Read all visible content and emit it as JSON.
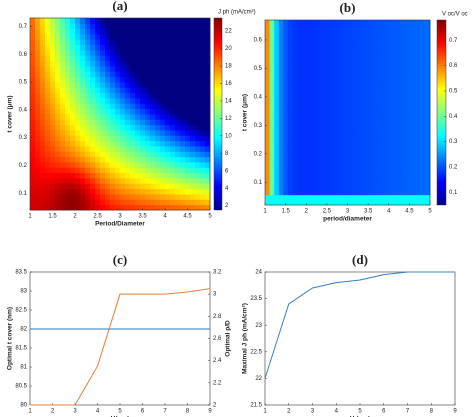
{
  "chart_data": [
    {
      "type": "heatmap",
      "title": "(a)",
      "x_label": "Period/Diameter",
      "y_label": "t cover (μm)",
      "colorbar_label": "J ph (mA/cm²)",
      "xlim": [
        1,
        5
      ],
      "xticks": [
        1,
        1.5,
        2,
        2.5,
        3,
        3.5,
        4,
        4.5,
        5
      ],
      "ylim": [
        0.04,
        0.73
      ],
      "yticks": [
        0.1,
        0.2,
        0.3,
        0.4,
        0.5,
        0.6,
        0.7
      ],
      "clim": [
        1.5,
        23.5
      ],
      "cticks": [
        2,
        4,
        6,
        8,
        10,
        12,
        14,
        16,
        18,
        20,
        22
      ],
      "colormap": "jet"
    },
    {
      "type": "heatmap",
      "title": "(b)",
      "x_label": "period/diameter",
      "y_label": "t cover (μm)",
      "colorbar_label": "V oc/V oc",
      "xlim": [
        1,
        5
      ],
      "xticks": [
        1,
        1.5,
        2,
        2.5,
        3,
        3.5,
        4,
        4.5,
        5
      ],
      "ylim": [
        0.02,
        0.67
      ],
      "yticks": [
        0.1,
        0.2,
        0.3,
        0.4,
        0.5,
        0.6
      ],
      "clim": [
        0.05,
        0.78
      ],
      "cticks": [
        0.1,
        0.2,
        0.3,
        0.4,
        0.5,
        0.6,
        0.7
      ],
      "colormap": "jet"
    },
    {
      "type": "line",
      "title": "(c)",
      "x_label": "H(μm)",
      "y_label": "Optimal t cover (nm)",
      "y2_label": "Optimal p/D",
      "x": [
        1,
        2,
        3,
        4,
        5,
        6,
        7,
        8,
        9
      ],
      "xlim": [
        1,
        9
      ],
      "xticks": [
        1,
        2,
        3,
        4,
        5,
        6,
        7,
        8,
        9
      ],
      "ylim": [
        80,
        83.5
      ],
      "yticks": [
        80,
        80.5,
        81,
        81.5,
        82,
        82.5,
        83,
        83.5
      ],
      "y2lim": [
        2,
        3.2
      ],
      "y2ticks": [
        2,
        2.2,
        2.4,
        2.6,
        2.8,
        3,
        3.2
      ],
      "series": [
        {
          "color": "#2a7ab8",
          "values": [
            82,
            82,
            82,
            82,
            82,
            82,
            82,
            82,
            82
          ]
        },
        {
          "color": "#e67e3a",
          "axis": "y2",
          "values": [
            2,
            2,
            2,
            2.35,
            3,
            3,
            3,
            3.02,
            3.05
          ]
        }
      ]
    },
    {
      "type": "line",
      "title": "(d)",
      "x_label": "H (μm)",
      "y_label": "Maximal J ph (mA/cm²)",
      "x": [
        1,
        2,
        3,
        4,
        5,
        6,
        7,
        8,
        9
      ],
      "xlim": [
        1,
        9
      ],
      "xticks": [
        1,
        2,
        3,
        4,
        5,
        6,
        7,
        8,
        9
      ],
      "ylim": [
        21.5,
        24
      ],
      "yticks": [
        21.5,
        22,
        22.5,
        23,
        23.5,
        24
      ],
      "series": [
        {
          "color": "#3b7fc4",
          "values": [
            22,
            23.4,
            23.7,
            23.8,
            23.85,
            23.95,
            24,
            24,
            24
          ]
        }
      ]
    }
  ]
}
